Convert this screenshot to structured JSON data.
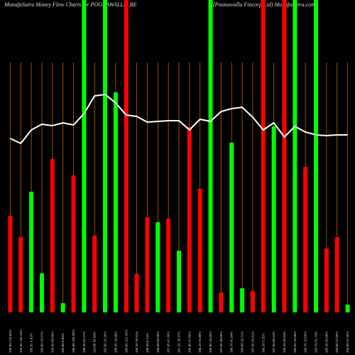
{
  "chart_data": {
    "type": "bar",
    "title": "MunafaSutra  Money Flow  Charts for POONAWALLA_BE",
    "subtitle": "(Poonawalla Fincorp Ltd) MunafaSutra.com",
    "categories": [
      "106.80 170.60%",
      "104.95 134.15%",
      "105.91 4.92%",
      "103.80 19.57%",
      "104.45 88.60%",
      "105.88 9.69%",
      "106.90 120.30%",
      "108.35 53.17%",
      "110.00 34.90%",
      "107.05 15.16%",
      "108.45 18.40%",
      "106.60 121.42%",
      "105.20 70.51%",
      "106.99 6.74%",
      "106.90 58.05%",
      "107.45 41.69%",
      "107.25 18.37%",
      "105.85 47.82%",
      "106.10 76.80%",
      "105.85 10.45%",
      "107.95 38.69%",
      "108.70 41.64%",
      "109.00 10.71%",
      "107.05 26.91%",
      "106.20 3.25%",
      "107.05 60.44%",
      "105.10 38.64%",
      "105.55 15.00%",
      "104.75 15.65%",
      "103.70 51.73%",
      "105.45 25.00%",
      "105.05 27.55%",
      "104.80 37.15%"
    ],
    "values": [
      136,
      106,
      170,
      55,
      216,
      13,
      193,
      440,
      108,
      440,
      310,
      440,
      54,
      134,
      127,
      132,
      87,
      261,
      174,
      440,
      28,
      239,
      34,
      30,
      440,
      262,
      440,
      440,
      205,
      440,
      90,
      106,
      11
    ],
    "colors": [
      "#f00",
      "#f00",
      "#0f0",
      "#0f0",
      "#f00",
      "#0f0",
      "#f00",
      "#0f0",
      "#f00",
      "#0f0",
      "#0f0",
      "#f00",
      "#f00",
      "#f00",
      "#0f0",
      "#f00",
      "#0f0",
      "#f00",
      "#f00",
      "#0f0",
      "#f00",
      "#0f0",
      "#0f0",
      "#f00",
      "#f00",
      "#0f0",
      "#f00",
      "#0f0",
      "#f00",
      "#0f0",
      "#f00",
      "#f00",
      "#0f0"
    ],
    "line": {
      "color": "#ffffff",
      "values": [
        245,
        238,
        257,
        265,
        263,
        267,
        264,
        280,
        305,
        307,
        295,
        278,
        276,
        268,
        269,
        270,
        270,
        257,
        272,
        269,
        283,
        287,
        289,
        275,
        257,
        267,
        247,
        262,
        254,
        250,
        249,
        250,
        250
      ]
    },
    "ylim": [
      0,
      440
    ],
    "gridline_color": "#b8620a"
  }
}
